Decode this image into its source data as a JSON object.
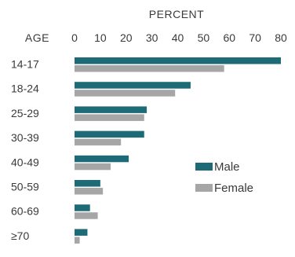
{
  "chart_data": {
    "type": "bar",
    "orientation": "horizontal",
    "title": "",
    "xlabel": "PERCENT",
    "ylabel": "AGE",
    "categories": [
      "14-17",
      "18-24",
      "25-29",
      "30-39",
      "40-49",
      "50-59",
      "60-69",
      "≥70"
    ],
    "x_ticks": [
      0,
      10,
      20,
      30,
      40,
      50,
      60,
      70,
      80
    ],
    "xlim": [
      0,
      80
    ],
    "series": [
      {
        "name": "Male",
        "color": "#1e6b78",
        "values": [
          80,
          45,
          28,
          27,
          21,
          10,
          6,
          5
        ]
      },
      {
        "name": "Female",
        "color": "#a6a6a6",
        "values": [
          58,
          39,
          27,
          18,
          14,
          11,
          9,
          2
        ]
      }
    ],
    "legend_position": "right",
    "grid": false
  }
}
